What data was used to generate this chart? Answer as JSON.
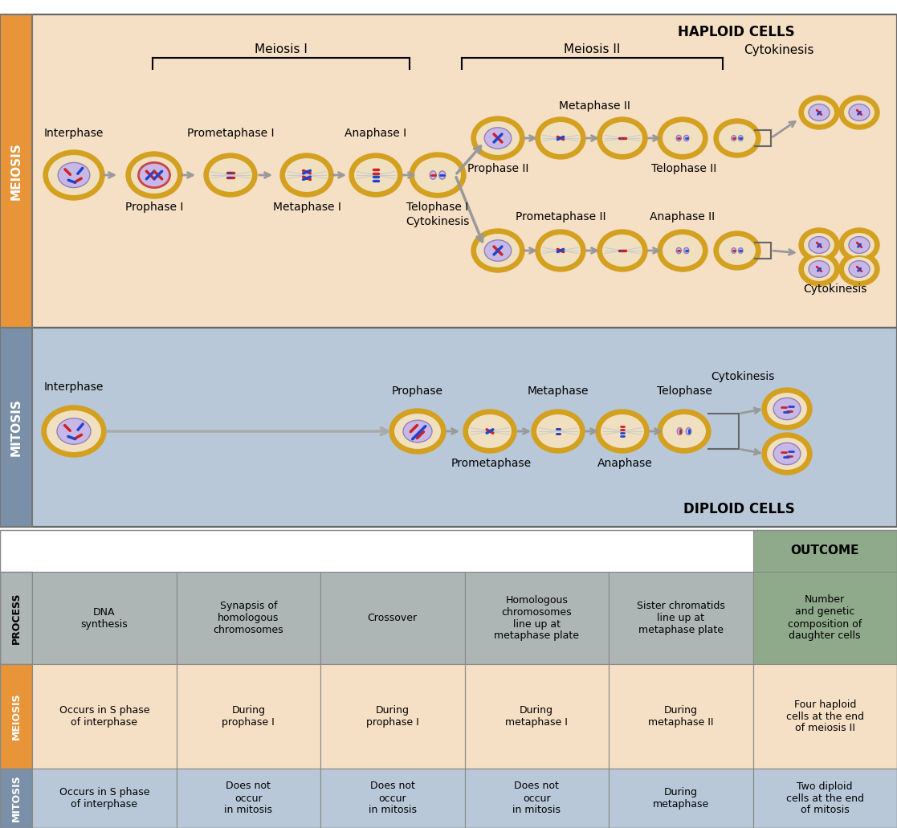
{
  "fig_width": 11.17,
  "fig_height": 10.31,
  "dpi": 100,
  "meiosis_bg": "#f5dfc5",
  "meiosis_label_bg": "#e8953a",
  "mitosis_bg": "#b8c8d8",
  "mitosis_label_bg": "#7a90a8",
  "table_process_bg": "#adb5b5",
  "table_meiosis_bg": "#f5dfc5",
  "table_mitosis_bg": "#b8c8d8",
  "table_outcome_bg": "#8faa8a",
  "cell_outer": "#d4a020",
  "cell_body_meiosis": "#f0e0c0",
  "cell_body_mitosis": "#f0e0c0",
  "cell_nucleus": "#c8b8e8",
  "chr_red": "#cc2222",
  "chr_blue": "#2244cc",
  "chr_dark_red": "#aa1111",
  "chr_dark_blue": "#112299",
  "arrow_color": "#aaaaaa",
  "line_color": "#888888",
  "haploid_text": "HAPLOID CELLS",
  "diploid_text": "DIPLOID CELLS",
  "outcome_text": "OUTCOME",
  "process_label": "PROCESS",
  "meiosis_label": "MEIOSIS",
  "mitosis_label": "MITOSIS",
  "table_cols_process": [
    "DNA\nsynthesis",
    "Synapsis of\nhomologous\nchromosomes",
    "Crossover",
    "Homologous\nchromosomes\nline up at\nmetaphase plate",
    "Sister chromatids\nline up at\nmetaphase plate",
    "Number\nand genetic\ncomposition of\ndaughter cells"
  ],
  "table_meiosis_data": [
    "Occurs in S phase\nof interphase",
    "During\nprophase I",
    "During\nprophase I",
    "During\nmetaphase I",
    "During\nmetaphase II",
    "Four haploid\ncells at the end\nof meiosis II"
  ],
  "table_mitosis_data": [
    "Occurs in S phase\nof interphase",
    "Does not\noccur\nin mitosis",
    "Does not\noccur\nin mitosis",
    "Does not\noccur\nin mitosis",
    "During\nmetaphase",
    "Two diploid\ncells at the end\nof mitosis"
  ]
}
